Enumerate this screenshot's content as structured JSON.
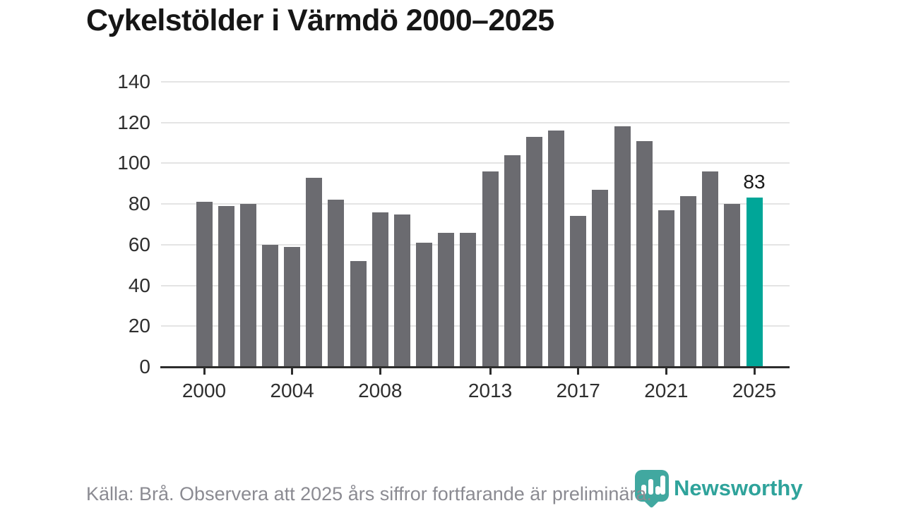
{
  "title": "Cykelstölder i Värmdö 2000–2025",
  "footer": {
    "source_note": "Källa: Brå. Observera att 2025 års siffror fortfarande är preliminära.",
    "logo_text": "Newsworthy"
  },
  "colors": {
    "bar": "#6b6b70",
    "highlight": "#00a698",
    "axis": "#2d2d2d",
    "grid": "#e4e4e4",
    "logo_teal": "#41a8a0",
    "footer_text": "#8b8b92",
    "label_text": "#2e2e2e"
  },
  "chart_data": {
    "type": "bar",
    "title": "Cykelstölder i Värmdö 2000–2025",
    "categories": [
      2000,
      2001,
      2002,
      2003,
      2004,
      2005,
      2006,
      2007,
      2008,
      2009,
      2010,
      2011,
      2012,
      2013,
      2014,
      2015,
      2016,
      2017,
      2018,
      2019,
      2020,
      2021,
      2022,
      2023,
      2024,
      2025
    ],
    "values": [
      81,
      79,
      80,
      60,
      59,
      93,
      82,
      52,
      76,
      75,
      61,
      66,
      66,
      96,
      104,
      113,
      116,
      74,
      87,
      118,
      111,
      77,
      84,
      96,
      80,
      83
    ],
    "highlight_category": 2025,
    "highlight_value_label": "83",
    "ylim": [
      0,
      140
    ],
    "yticks": [
      0,
      20,
      40,
      60,
      80,
      100,
      120,
      140
    ],
    "xticks": [
      2000,
      2004,
      2008,
      2013,
      2017,
      2021,
      2025
    ],
    "grid": true,
    "legend": null,
    "source": "Källa: Brå."
  }
}
